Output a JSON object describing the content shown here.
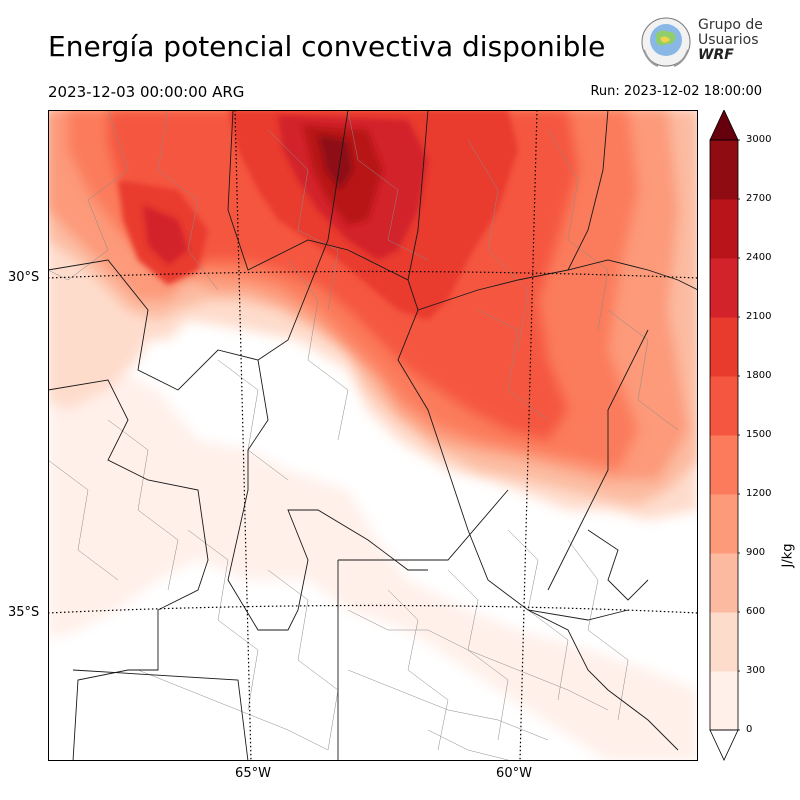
{
  "title": "Energía potencial convectiva disponible",
  "valid_time": "2023-12-03 00:00:00 ARG",
  "run_time": "Run: 2023-12-02 18:00:00",
  "logo": {
    "line1": "Grupo de",
    "line2": "Usuarios",
    "line3": "WRF"
  },
  "map": {
    "variable": "CAPE",
    "lat_labels": [
      "30°S",
      "35°S"
    ],
    "lon_labels": [
      "65°W",
      "60°W"
    ],
    "colors": {
      "background": "#ffffff",
      "borders": "#222222",
      "departments": "#8a8a8a",
      "gridlines": "#000000"
    }
  },
  "colorbar": {
    "unit": "J/kg",
    "levels": [
      0,
      300,
      600,
      900,
      1200,
      1500,
      1800,
      2100,
      2400,
      2700,
      3000
    ],
    "tick_labels": [
      "0",
      "300",
      "600",
      "900",
      "1200",
      "1500",
      "1800",
      "2100",
      "2400",
      "2700",
      "3000"
    ],
    "colors": [
      "#fff0ea",
      "#fedccc",
      "#fcbba1",
      "#fc9a7a",
      "#fb7b5c",
      "#f5563f",
      "#e93a2e",
      "#d2222a",
      "#b81419",
      "#8f0c13"
    ],
    "extend_colors": {
      "over": "#67000d",
      "under": "#ffffff"
    }
  }
}
